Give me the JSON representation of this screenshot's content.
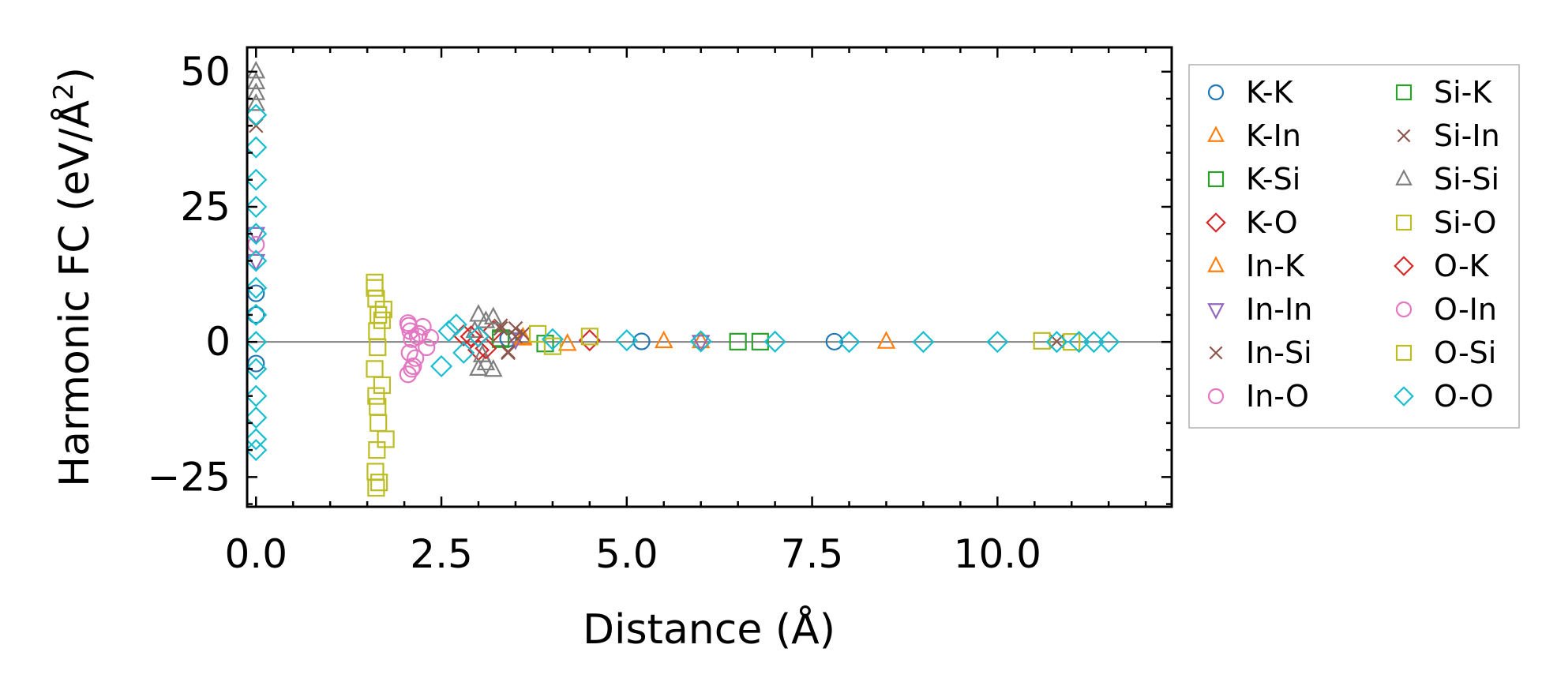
{
  "chart_data": {
    "type": "scatter",
    "title": "",
    "xlabel": "Distance (Å)",
    "ylabel_main": "Harmonic FC (eV/Å",
    "ylabel_sup": "2",
    "ylabel_close": ")",
    "xlim": [
      -0.12,
      12.35
    ],
    "ylim": [
      -30.5,
      54.5
    ],
    "xticks": [
      {
        "value": 0.0,
        "label": "0.0"
      },
      {
        "value": 2.5,
        "label": "2.5"
      },
      {
        "value": 5.0,
        "label": "5.0"
      },
      {
        "value": 7.5,
        "label": "7.5"
      },
      {
        "value": 10.0,
        "label": "10.0"
      }
    ],
    "yticks": [
      {
        "value": 50,
        "label": "50"
      },
      {
        "value": 25,
        "label": "25"
      },
      {
        "value": 0,
        "label": "0"
      },
      {
        "value": -25,
        "label": "−25"
      }
    ],
    "hline": 0,
    "legend_position": "outside-right",
    "series": [
      {
        "name": "K-K",
        "marker": "circle",
        "color": "#1f77b4",
        "points": [
          [
            0.0,
            5.0
          ],
          [
            0.0,
            9.0
          ],
          [
            0.0,
            -4.0
          ],
          [
            3.4,
            0.6
          ],
          [
            5.2,
            0.1
          ],
          [
            7.8,
            0.05
          ]
        ]
      },
      {
        "name": "K-In",
        "marker": "triangle-up",
        "color": "#ff7f0e",
        "points": [
          [
            3.6,
            0.8
          ],
          [
            4.2,
            -0.4
          ],
          [
            6.0,
            0.1
          ],
          [
            8.5,
            0.0
          ]
        ]
      },
      {
        "name": "K-Si",
        "marker": "square",
        "color": "#2ca02c",
        "points": [
          [
            3.3,
            0.7
          ],
          [
            3.9,
            -0.3
          ],
          [
            6.5,
            0.05
          ]
        ]
      },
      {
        "name": "K-O",
        "marker": "diamond",
        "color": "#d62728",
        "points": [
          [
            2.8,
            1.2
          ],
          [
            3.0,
            -1.5
          ],
          [
            3.2,
            2.0
          ],
          [
            4.5,
            0.3
          ]
        ]
      },
      {
        "name": "In-K",
        "marker": "triangle-up",
        "color": "#ff7f0e",
        "points": [
          [
            3.6,
            0.6
          ],
          [
            5.5,
            0.1
          ]
        ]
      },
      {
        "name": "In-In",
        "marker": "triangle-down",
        "color": "#9467bd",
        "points": [
          [
            0.0,
            20.0
          ],
          [
            0.0,
            15.0
          ],
          [
            3.5,
            0.5
          ],
          [
            6.0,
            0.05
          ]
        ]
      },
      {
        "name": "In-Si",
        "marker": "x",
        "color": "#8c564b",
        "points": [
          [
            0.0,
            40.0
          ],
          [
            3.3,
            3.0
          ],
          [
            3.4,
            -2.0
          ],
          [
            3.6,
            1.5
          ],
          [
            3.5,
            2.5
          ],
          [
            10.8,
            0.1
          ]
        ]
      },
      {
        "name": "In-O",
        "marker": "circle",
        "color": "#e377c2",
        "points": [
          [
            0.0,
            18.0
          ],
          [
            2.05,
            3.5
          ],
          [
            2.08,
            2.0
          ],
          [
            2.1,
            0.5
          ],
          [
            2.07,
            -2.0
          ],
          [
            2.12,
            -4.5
          ],
          [
            2.05,
            -6.0
          ],
          [
            2.15,
            -3.0
          ],
          [
            2.2,
            1.5
          ],
          [
            2.25,
            2.8
          ],
          [
            2.3,
            -1.0
          ],
          [
            2.35,
            0.8
          ]
        ]
      },
      {
        "name": "Si-K",
        "marker": "square",
        "color": "#2ca02c",
        "points": [
          [
            3.3,
            0.5
          ],
          [
            6.8,
            0.05
          ]
        ]
      },
      {
        "name": "Si-In",
        "marker": "x",
        "color": "#8c564b",
        "points": [
          [
            3.3,
            2.5
          ],
          [
            3.4,
            -1.8
          ],
          [
            3.5,
            1.0
          ]
        ]
      },
      {
        "name": "Si-Si",
        "marker": "triangle-up",
        "color": "#7f7f7f",
        "points": [
          [
            0.0,
            50.0
          ],
          [
            0.0,
            48.0
          ],
          [
            0.0,
            46.0
          ],
          [
            0.0,
            44.0
          ],
          [
            3.0,
            5.0
          ],
          [
            3.1,
            3.8
          ],
          [
            3.2,
            4.5
          ],
          [
            3.0,
            -5.0
          ],
          [
            3.1,
            -4.0
          ],
          [
            3.2,
            -5.2
          ],
          [
            2.95,
            2.0
          ],
          [
            3.05,
            -2.5
          ]
        ]
      },
      {
        "name": "Si-O",
        "marker": "square",
        "color": "#bcbd22",
        "points": [
          [
            1.6,
            11.0
          ],
          [
            1.62,
            8.0
          ],
          [
            1.65,
            5.0
          ],
          [
            1.63,
            2.0
          ],
          [
            1.64,
            -1.0
          ],
          [
            1.6,
            -5.0
          ],
          [
            1.62,
            -10.0
          ],
          [
            1.65,
            -15.0
          ],
          [
            1.63,
            -20.0
          ],
          [
            1.61,
            -24.0
          ],
          [
            1.62,
            -27.0
          ],
          [
            1.7,
            -8.0
          ],
          [
            1.72,
            6.0
          ],
          [
            1.75,
            -18.0
          ],
          [
            3.8,
            1.5
          ],
          [
            4.0,
            -0.8
          ],
          [
            4.5,
            1.0
          ]
        ]
      },
      {
        "name": "O-K",
        "marker": "diamond",
        "color": "#d62728",
        "points": [
          [
            2.9,
            1.0
          ],
          [
            3.1,
            -1.2
          ]
        ]
      },
      {
        "name": "O-In",
        "marker": "circle",
        "color": "#e377c2",
        "points": [
          [
            2.06,
            3.0
          ],
          [
            2.1,
            -5.0
          ],
          [
            2.18,
            1.0
          ]
        ]
      },
      {
        "name": "O-Si",
        "marker": "square",
        "color": "#bcbd22",
        "points": [
          [
            1.6,
            10.0
          ],
          [
            1.64,
            -12.0
          ],
          [
            1.66,
            -26.0
          ],
          [
            1.7,
            4.0
          ],
          [
            10.6,
            0.2
          ],
          [
            11.0,
            0.0
          ]
        ]
      },
      {
        "name": "O-O",
        "marker": "diamond",
        "color": "#17becf",
        "points": [
          [
            0.0,
            42.0
          ],
          [
            0.0,
            36.0
          ],
          [
            0.0,
            30.0
          ],
          [
            0.0,
            25.0
          ],
          [
            0.0,
            20.0
          ],
          [
            0.0,
            15.0
          ],
          [
            0.0,
            10.0
          ],
          [
            0.0,
            5.0
          ],
          [
            0.0,
            0.0
          ],
          [
            0.0,
            -5.0
          ],
          [
            0.0,
            -10.0
          ],
          [
            0.0,
            -14.0
          ],
          [
            0.0,
            -18.0
          ],
          [
            0.0,
            -20.0
          ],
          [
            2.5,
            -4.5
          ],
          [
            2.6,
            2.0
          ],
          [
            2.7,
            3.2
          ],
          [
            2.8,
            -2.0
          ],
          [
            3.0,
            1.0
          ],
          [
            4.0,
            0.5
          ],
          [
            5.0,
            0.3
          ],
          [
            6.0,
            0.1
          ],
          [
            7.0,
            0.05
          ],
          [
            8.0,
            0.0
          ],
          [
            9.0,
            0.0
          ],
          [
            10.0,
            0.0
          ],
          [
            10.8,
            0.0
          ],
          [
            11.1,
            0.0
          ],
          [
            11.3,
            0.0
          ],
          [
            11.5,
            0.0
          ]
        ]
      }
    ],
    "legend_columns": [
      [
        "K-K",
        "K-In",
        "K-Si",
        "K-O",
        "In-K",
        "In-In",
        "In-Si",
        "In-O"
      ],
      [
        "Si-K",
        "Si-In",
        "Si-Si",
        "Si-O",
        "O-K",
        "O-In",
        "O-Si",
        "O-O"
      ]
    ]
  }
}
